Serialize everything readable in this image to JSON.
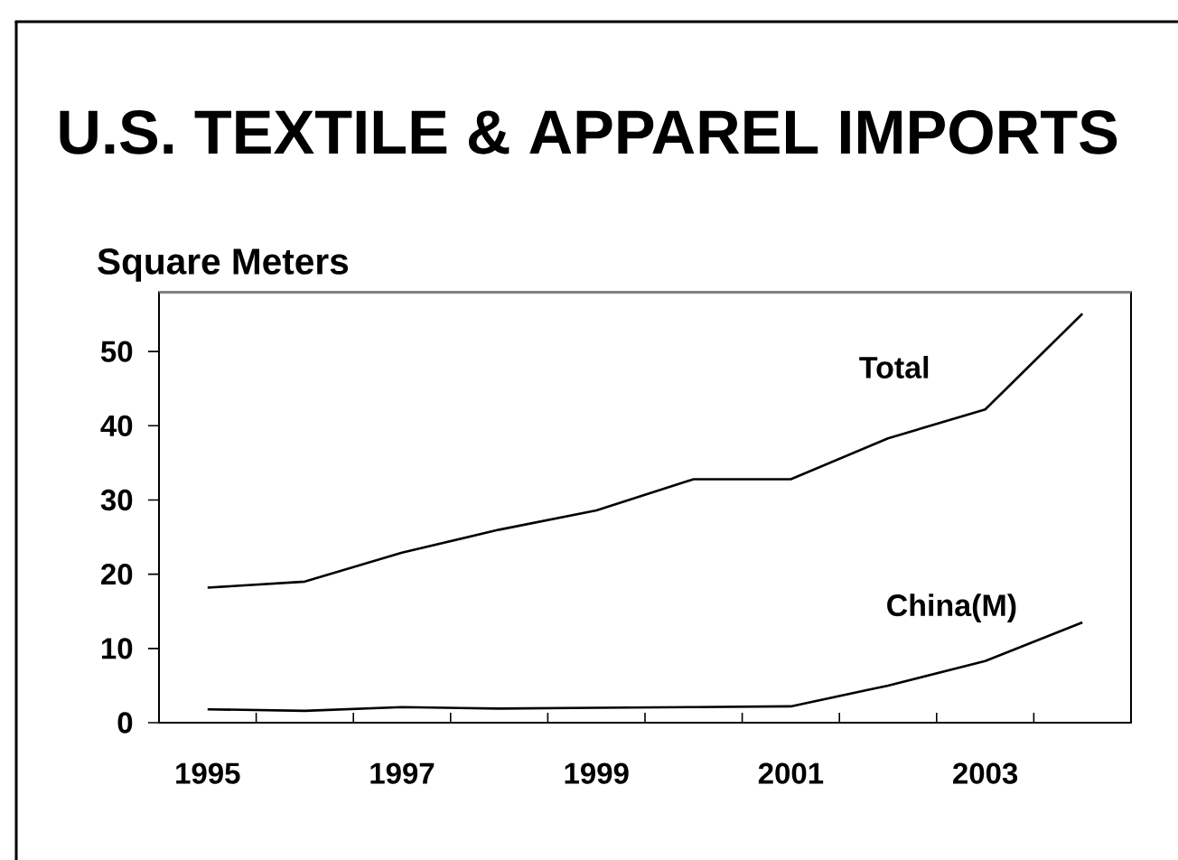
{
  "chart_data": {
    "type": "line",
    "title": "U.S. TEXTILE & APPAREL IMPORTS",
    "ylabel": "Square Meters",
    "categories": [
      "1995",
      null,
      "1997",
      null,
      "1999",
      null,
      "2001",
      null,
      "2003",
      null
    ],
    "series": [
      {
        "name": "Total",
        "color": "#000000",
        "values": [
          18.2,
          19.0,
          22.9,
          26.0,
          28.6,
          32.8,
          32.8,
          38.3,
          42.2,
          55.1
        ]
      },
      {
        "name": "China(M)",
        "color": "#000000",
        "values": [
          1.8,
          1.6,
          2.1,
          1.9,
          2.0,
          2.1,
          2.2,
          5.0,
          8.3,
          13.5
        ]
      }
    ],
    "ylim": [
      0,
      58
    ],
    "yticks": [
      0,
      10,
      20,
      30,
      40,
      50
    ],
    "legend": false
  }
}
